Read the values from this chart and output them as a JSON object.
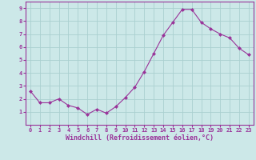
{
  "x": [
    0,
    1,
    2,
    3,
    4,
    5,
    6,
    7,
    8,
    9,
    10,
    11,
    12,
    13,
    14,
    15,
    16,
    17,
    18,
    19,
    20,
    21,
    22,
    23
  ],
  "y": [
    2.6,
    1.7,
    1.7,
    2.0,
    1.5,
    1.3,
    0.8,
    1.2,
    0.9,
    1.4,
    2.1,
    2.9,
    4.1,
    5.5,
    6.9,
    7.9,
    8.9,
    8.9,
    7.9,
    7.4,
    7.0,
    6.7,
    5.9,
    5.4
  ],
  "line_color": "#993399",
  "marker": "D",
  "marker_size": 2.0,
  "bg_color": "#cce8e8",
  "grid_color": "#aad0d0",
  "xlabel": "Windchill (Refroidissement éolien,°C)",
  "xlim": [
    -0.5,
    23.5
  ],
  "ylim": [
    0,
    9.5
  ],
  "yticks": [
    1,
    2,
    3,
    4,
    5,
    6,
    7,
    8,
    9
  ],
  "xticks": [
    0,
    1,
    2,
    3,
    4,
    5,
    6,
    7,
    8,
    9,
    10,
    11,
    12,
    13,
    14,
    15,
    16,
    17,
    18,
    19,
    20,
    21,
    22,
    23
  ],
  "tick_label_color": "#993399",
  "tick_fontsize": 5.0,
  "xlabel_fontsize": 6.0,
  "label_color": "#993399",
  "spine_color": "#993399",
  "line_width": 0.8
}
